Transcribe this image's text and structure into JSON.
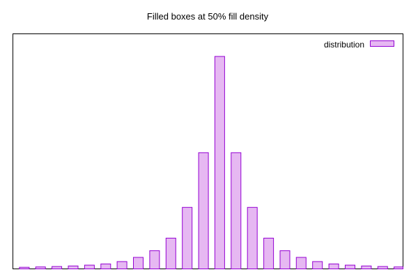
{
  "chart_data": {
    "type": "bar",
    "title": "Filled boxes at 50% fill density",
    "xlabel": "",
    "ylabel": "",
    "xlim": [
      -12.7,
      11.25
    ],
    "ylim": [
      0,
      1.0
    ],
    "grid": false,
    "legend_position": "top-right",
    "fill_density": 0.5,
    "series": [
      {
        "name": "distribution",
        "color": "#9400d3",
        "x": [
          -12,
          -11,
          -10,
          -9,
          -8,
          -7,
          -6,
          -5,
          -4,
          -3,
          -2,
          -1,
          0,
          1,
          2,
          3,
          4,
          5,
          6,
          7,
          8,
          9,
          10,
          11
        ],
        "values": [
          0.0069,
          0.0082,
          0.0101,
          0.0124,
          0.0159,
          0.021,
          0.0311,
          0.049,
          0.0775,
          0.131,
          0.2617,
          0.4944,
          0.9039,
          0.4944,
          0.2617,
          0.131,
          0.0775,
          0.049,
          0.0311,
          0.021,
          0.0159,
          0.0124,
          0.0101,
          0.0082
        ]
      }
    ]
  }
}
